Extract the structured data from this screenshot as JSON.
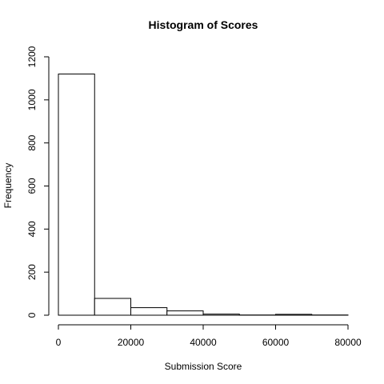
{
  "chart_data": {
    "type": "bar",
    "title": "Histogram of Scores",
    "xlabel": "Submission Score",
    "ylabel": "Frequency",
    "bins": [
      {
        "start": 0,
        "end": 10000,
        "count": 1120
      },
      {
        "start": 10000,
        "end": 20000,
        "count": 78
      },
      {
        "start": 20000,
        "end": 30000,
        "count": 35
      },
      {
        "start": 30000,
        "end": 40000,
        "count": 20
      },
      {
        "start": 40000,
        "end": 50000,
        "count": 5
      },
      {
        "start": 50000,
        "end": 60000,
        "count": 1
      },
      {
        "start": 60000,
        "end": 70000,
        "count": 4
      },
      {
        "start": 70000,
        "end": 80000,
        "count": 1
      }
    ],
    "xlim": [
      0,
      80000
    ],
    "ylim": [
      0,
      1200
    ],
    "xticks": [
      0,
      20000,
      40000,
      60000,
      80000
    ],
    "yticks": [
      0,
      200,
      400,
      600,
      800,
      1000,
      1200
    ],
    "grid": false,
    "bar_fill": "#ffffff",
    "bar_stroke": "#000000"
  }
}
